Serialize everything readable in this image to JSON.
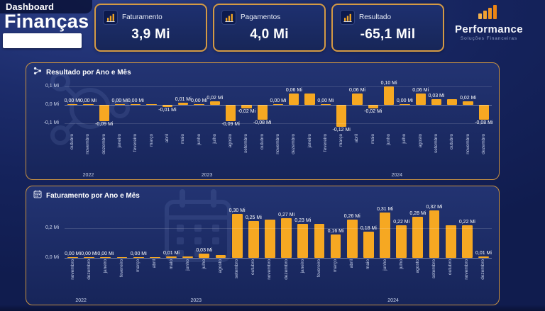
{
  "header": {
    "kicker": "Dashboard",
    "title": "Finanças"
  },
  "kpis": [
    {
      "label": "Faturamento",
      "value": "3,9 Mi"
    },
    {
      "label": "Pagamentos",
      "value": "4,0 Mi"
    },
    {
      "label": "Resultado",
      "value": "-65,1 Mil"
    }
  ],
  "logo": {
    "name": "Performance",
    "subtitle": "Soluções Financeiras"
  },
  "colors": {
    "background": "#1B2A66",
    "panel_border": "#C79143",
    "card_border": "#D49A45",
    "bar": "#F6A822",
    "text": "#FFFFFF",
    "muted_text": "#C9D2EA"
  },
  "icons": {
    "kpi": "bar-chart-icon",
    "panel1": "share-network-icon",
    "panel2": "calendar-icon",
    "logo": "ascending-bars-icon"
  },
  "chart_data": [
    {
      "type": "bar",
      "title": "Resultado por Ano e Mês",
      "ylim": [
        -0.15,
        0.135
      ],
      "yticks": [
        {
          "value": 0.1,
          "label": "0,1 Mi"
        },
        {
          "value": 0,
          "label": "0,0 Mi"
        },
        {
          "value": -0.1,
          "label": "-0,1 Mi"
        }
      ],
      "categories": [
        "outubro",
        "novembro",
        "dezembro",
        "janeiro",
        "fevereiro",
        "março",
        "abril",
        "maio",
        "junho",
        "julho",
        "agosto",
        "setembro",
        "outubro",
        "novembro",
        "dezembro",
        "janeiro",
        "fevereiro",
        "março",
        "abril",
        "maio",
        "junho",
        "julho",
        "agosto",
        "setembro",
        "outubro",
        "novembro",
        "dezembro"
      ],
      "years": [
        {
          "label": "2022",
          "span": 3
        },
        {
          "label": "2023",
          "span": 12
        },
        {
          "label": "2024",
          "span": 12
        }
      ],
      "values": [
        0,
        0,
        -0.09,
        0,
        0,
        0,
        -0.01,
        0.01,
        0,
        0.02,
        -0.09,
        -0.02,
        -0.08,
        0,
        0.06,
        0.06,
        0,
        -0.12,
        0.06,
        -0.02,
        0.1,
        0,
        0.06,
        0.03,
        0.03,
        0.02,
        -0.08
      ],
      "labels": [
        "0,00 Mi",
        "0,00 Mi",
        "-0,09 Mi",
        "0,00 Mi",
        "0,00 Mi",
        "",
        "-0,01 Mi",
        "0,01 Mi",
        "0,00 Mi",
        "0,02 Mi",
        "-0,09 Mi",
        "-0,02 Mi",
        "-0,08 Mi",
        "0,00 Mi",
        "0,06 Mi",
        "",
        "0,00 Mi",
        "-0,12 Mi",
        "0,06 Mi",
        "-0,02 Mi",
        "0,10 Mi",
        "0,00 Mi",
        "0,06 Mi",
        "0,03 Mi",
        "",
        "0,02 Mi",
        "-0,08 Mi"
      ],
      "legend": "off",
      "grid": "horizontal"
    },
    {
      "type": "bar",
      "title": "Faturamento por Ano e Mês",
      "ylim": [
        0,
        0.37
      ],
      "yticks": [
        {
          "value": 0.2,
          "label": "0,2 Mi"
        },
        {
          "value": 0,
          "label": "0,0 Mi"
        }
      ],
      "categories": [
        "novembro",
        "dezembro",
        "janeiro",
        "fevereiro",
        "março",
        "abril",
        "maio",
        "junho",
        "julho",
        "agosto",
        "setembro",
        "outubro",
        "novembro",
        "dezembro",
        "janeiro",
        "fevereiro",
        "março",
        "abril",
        "maio",
        "junho",
        "julho",
        "agosto",
        "setembro",
        "outubro",
        "novembro",
        "dezembro"
      ],
      "years": [
        {
          "label": "2022",
          "span": 2
        },
        {
          "label": "2023",
          "span": 12
        },
        {
          "label": "2024",
          "span": 12
        }
      ],
      "values": [
        0,
        0,
        0,
        0,
        0,
        0,
        0.01,
        0.01,
        0.03,
        0.02,
        0.3,
        0.25,
        0.26,
        0.27,
        0.23,
        0.23,
        0.16,
        0.26,
        0.18,
        0.31,
        0.22,
        0.28,
        0.32,
        0.22,
        0.22,
        0.01
      ],
      "labels": [
        "0,00 Mi",
        "0,00 Mi",
        "0,00 Mi",
        "",
        "0,00 Mi",
        "",
        "0,01 Mi",
        "",
        "0,03 Mi",
        "",
        "0,30 Mi",
        "0,25 Mi",
        "",
        "0,27 Mi",
        "0,23 Mi",
        "",
        "0,16 Mi",
        "0,26 Mi",
        "0,18 Mi",
        "0,31 Mi",
        "0,22 Mi",
        "0,28 Mi",
        "0,32 Mi",
        "",
        "0,22 Mi",
        "0,01 Mi"
      ],
      "legend": "off",
      "grid": "horizontal"
    }
  ]
}
